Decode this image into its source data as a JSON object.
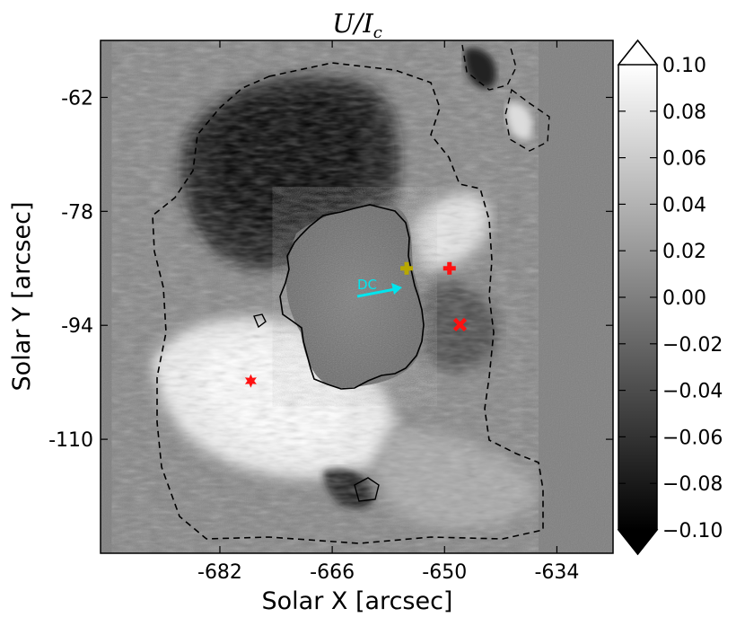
{
  "chart_data": {
    "type": "heatmap",
    "title": "U/I",
    "title_subscript": "c",
    "xlabel": "Solar X [arcsec]",
    "ylabel": "Solar Y [arcsec]",
    "x_ticks": [
      "-682",
      "-666",
      "-650",
      "-634"
    ],
    "x_tick_values": [
      -682,
      -666,
      -650,
      -634
    ],
    "y_ticks": [
      "-62",
      "-78",
      "-94",
      "-110"
    ],
    "y_tick_values": [
      -62,
      -78,
      -94,
      -110
    ],
    "xlim": [
      -699,
      -626
    ],
    "ylim": [
      -126,
      -54
    ],
    "colorbar": {
      "range": [
        -0.1,
        0.1
      ],
      "colormap": "gray",
      "ticks": [
        "0.10",
        "0.08",
        "0.06",
        "0.04",
        "0.02",
        "0.00",
        "−0.02",
        "−0.04",
        "−0.06",
        "−0.08",
        "−0.10"
      ],
      "tick_values": [
        0.1,
        0.08,
        0.06,
        0.04,
        0.02,
        0.0,
        -0.02,
        -0.04,
        -0.06,
        -0.08,
        -0.1
      ],
      "extend": "both"
    },
    "annotations": {
      "arrow_label": "DC",
      "arrow_color": "#00e5ee"
    },
    "markers": [
      {
        "shape": "plus",
        "color": "#b8a800",
        "x": -655.4,
        "y": -86.0
      },
      {
        "shape": "plus",
        "color": "#ff1111",
        "x": -649.3,
        "y": -86.0
      },
      {
        "shape": "cross",
        "color": "#ff1111",
        "x": -647.8,
        "y": -93.9
      },
      {
        "shape": "star",
        "color": "#ff1111",
        "x": -677.6,
        "y": -101.8
      }
    ]
  }
}
